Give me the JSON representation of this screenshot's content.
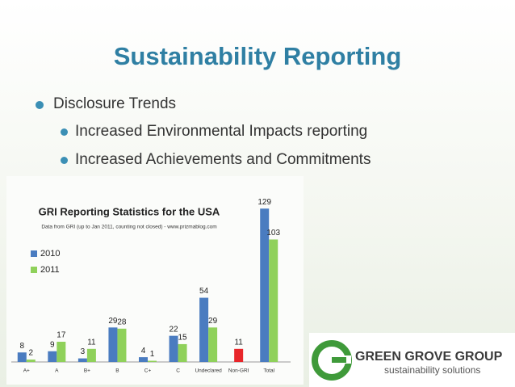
{
  "slide": {
    "title": "Sustainability Reporting",
    "bullets": [
      {
        "text": "Disclosure Trends",
        "sub": [
          "Increased Environmental Impacts reporting",
          "Increased Achievements and Commitments"
        ]
      }
    ]
  },
  "logo": {
    "name": "GREEN GROVE GROUP",
    "tagline": "sustainability solutions"
  },
  "chart_data": {
    "type": "bar",
    "title": "GRI Reporting Statistics for the USA",
    "subtitle": "Data from GRI (up to Jan 2011, counting not closed) - www.prizmablog.com",
    "categories": [
      "A+",
      "A",
      "B+",
      "B",
      "C+",
      "C",
      "Undeclared",
      "Non-GRI",
      "Total"
    ],
    "series": [
      {
        "name": "2010",
        "color": "#4a7cc0",
        "values": [
          8,
          9,
          3,
          29,
          4,
          22,
          54,
          null,
          129
        ]
      },
      {
        "name": "2011",
        "color": "#8fd15a",
        "values": [
          2,
          17,
          11,
          28,
          1,
          15,
          29,
          null,
          103
        ]
      },
      {
        "color": "#e8262a",
        "values": [
          null,
          null,
          null,
          null,
          null,
          null,
          null,
          11,
          null
        ]
      }
    ],
    "ylim": [
      0,
      140
    ]
  }
}
